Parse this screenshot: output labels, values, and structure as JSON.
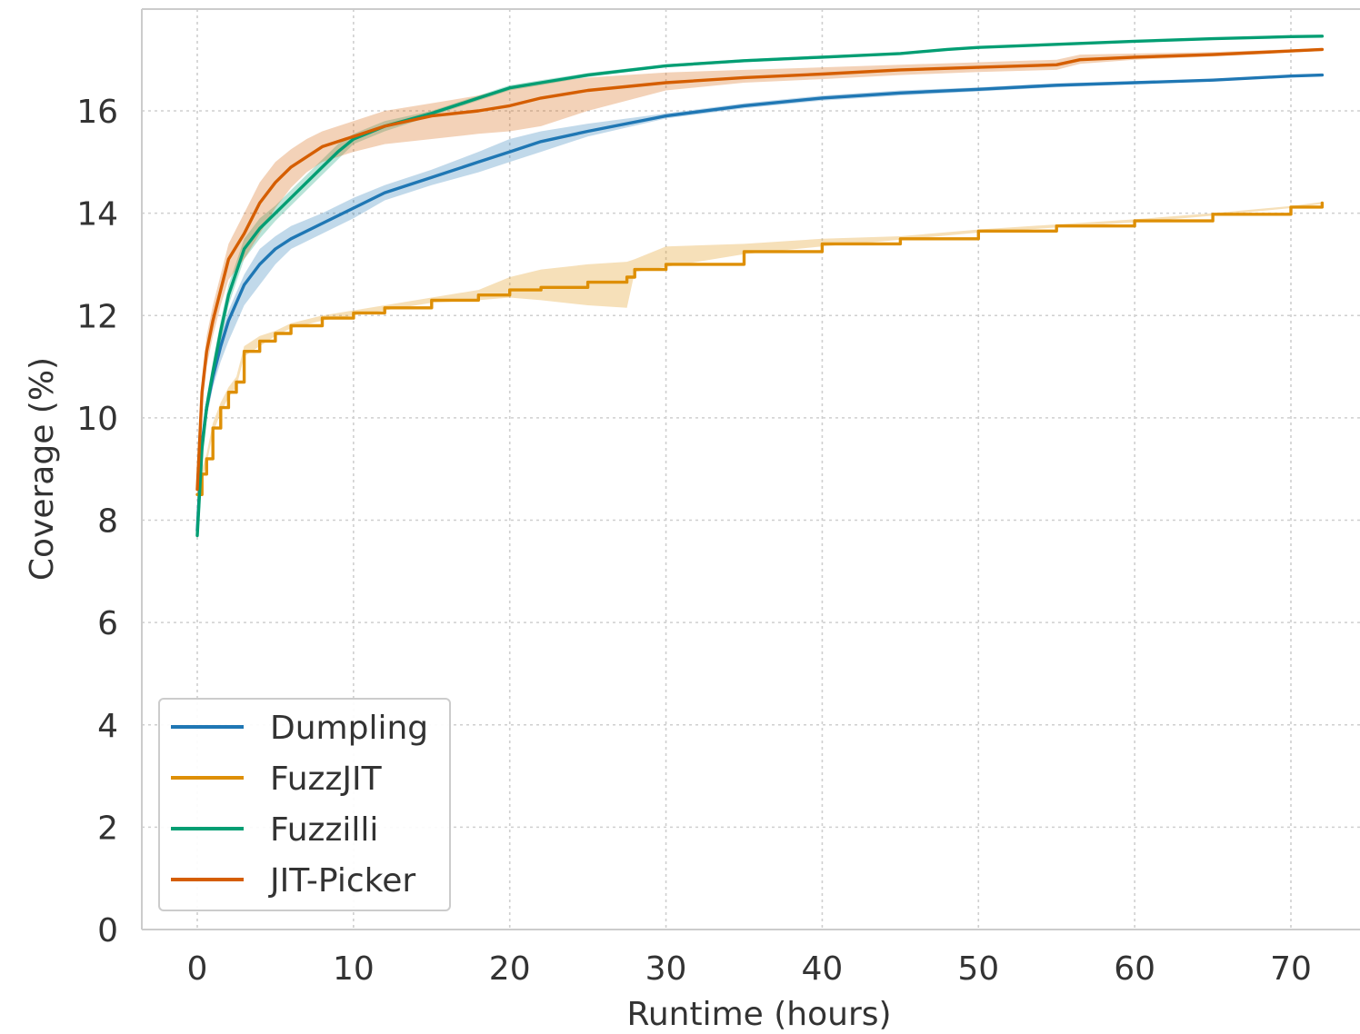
{
  "chart_data": {
    "type": "line",
    "xlabel": "Runtime (hours)",
    "ylabel": "Coverage (%)",
    "xlim": [
      -3.6,
      74.5
    ],
    "ylim": [
      0,
      18
    ],
    "xticks": [
      0,
      10,
      20,
      30,
      40,
      50,
      60,
      70
    ],
    "yticks": [
      0,
      2,
      4,
      6,
      8,
      10,
      12,
      14,
      16
    ],
    "grid": true,
    "legend": {
      "position": "lower-left"
    },
    "series": [
      {
        "name": "Dumpling",
        "color": "#1f77b4",
        "x": [
          0,
          0.3,
          0.6,
          1,
          1.5,
          2,
          3,
          4,
          5,
          6,
          8,
          10,
          12,
          15,
          18,
          20,
          22,
          25,
          30,
          35,
          40,
          45,
          50,
          55,
          60,
          65,
          70,
          72
        ],
        "y": [
          7.8,
          9.5,
          10.2,
          10.8,
          11.4,
          11.9,
          12.6,
          13.0,
          13.3,
          13.5,
          13.8,
          14.1,
          14.4,
          14.7,
          15.0,
          15.2,
          15.4,
          15.6,
          15.9,
          16.1,
          16.25,
          16.35,
          16.42,
          16.5,
          16.55,
          16.6,
          16.68,
          16.7
        ],
        "lower": [
          7.7,
          9.3,
          10.0,
          10.6,
          11.1,
          11.5,
          12.2,
          12.6,
          13.0,
          13.3,
          13.6,
          13.9,
          14.25,
          14.55,
          14.8,
          15.0,
          15.2,
          15.5,
          15.85,
          16.05,
          16.2,
          16.3,
          16.38,
          16.46,
          16.52,
          16.58,
          16.66,
          16.68
        ],
        "upper": [
          7.9,
          9.7,
          10.4,
          11.0,
          11.6,
          12.1,
          12.8,
          13.3,
          13.55,
          13.75,
          14.0,
          14.3,
          14.55,
          14.85,
          15.2,
          15.45,
          15.6,
          15.75,
          15.95,
          16.15,
          16.3,
          16.4,
          16.46,
          16.54,
          16.58,
          16.62,
          16.7,
          16.72
        ]
      },
      {
        "name": "FuzzJIT",
        "color": "#de8f05",
        "x": [
          0,
          0.3,
          0.6,
          1,
          1.5,
          2,
          2.5,
          3,
          4,
          5,
          6,
          8,
          10,
          12,
          15,
          18,
          20,
          22,
          25,
          27.5,
          28,
          30,
          35,
          40,
          45,
          50,
          55,
          60,
          65,
          70,
          72
        ],
        "y": [
          8.5,
          8.9,
          9.2,
          9.8,
          10.2,
          10.5,
          10.7,
          11.3,
          11.5,
          11.65,
          11.8,
          11.95,
          12.05,
          12.15,
          12.3,
          12.4,
          12.5,
          12.55,
          12.65,
          12.75,
          12.9,
          13.0,
          13.25,
          13.4,
          13.5,
          13.65,
          13.75,
          13.85,
          13.98,
          14.12,
          14.2
        ],
        "lower": [
          8.4,
          8.8,
          9.1,
          9.7,
          10.1,
          10.4,
          10.6,
          11.2,
          11.4,
          11.6,
          11.75,
          11.9,
          12.0,
          12.1,
          12.25,
          12.3,
          12.35,
          12.3,
          12.2,
          12.15,
          12.85,
          12.95,
          13.2,
          13.35,
          13.48,
          13.62,
          13.72,
          13.82,
          13.95,
          14.1,
          14.18
        ],
        "upper": [
          8.6,
          9.0,
          9.3,
          9.9,
          10.3,
          10.6,
          10.8,
          11.4,
          11.6,
          11.7,
          11.85,
          12.0,
          12.1,
          12.2,
          12.35,
          12.5,
          12.75,
          12.9,
          13.0,
          13.05,
          13.1,
          13.35,
          13.4,
          13.5,
          13.55,
          13.68,
          13.78,
          13.88,
          14.0,
          14.14,
          14.22
        ]
      },
      {
        "name": "Fuzzilli",
        "color": "#029e73",
        "x": [
          0,
          0.3,
          0.6,
          1,
          1.5,
          2,
          3,
          4,
          5,
          6,
          8,
          9,
          10,
          12,
          15,
          18,
          20,
          22,
          25,
          30,
          35,
          40,
          45,
          48,
          50,
          55,
          60,
          65,
          70,
          72
        ],
        "y": [
          7.7,
          9.4,
          10.2,
          10.9,
          11.7,
          12.4,
          13.3,
          13.7,
          14.0,
          14.3,
          14.9,
          15.2,
          15.45,
          15.7,
          15.95,
          16.25,
          16.45,
          16.55,
          16.7,
          16.88,
          16.98,
          17.05,
          17.12,
          17.2,
          17.24,
          17.3,
          17.36,
          17.41,
          17.45,
          17.46
        ],
        "lower": [
          7.6,
          9.2,
          10.0,
          10.7,
          11.5,
          12.2,
          13.1,
          13.5,
          13.85,
          14.15,
          14.75,
          15.05,
          15.35,
          15.6,
          15.9,
          16.2,
          16.4,
          16.5,
          16.66,
          16.85,
          16.95,
          17.02,
          17.1,
          17.18,
          17.22,
          17.28,
          17.34,
          17.39,
          17.43,
          17.44
        ],
        "upper": [
          7.8,
          9.6,
          10.4,
          11.1,
          11.9,
          12.6,
          13.5,
          13.9,
          14.15,
          14.45,
          15.05,
          15.35,
          15.55,
          15.8,
          16.0,
          16.3,
          16.5,
          16.6,
          16.74,
          16.91,
          17.01,
          17.08,
          17.14,
          17.22,
          17.26,
          17.32,
          17.38,
          17.43,
          17.47,
          17.48
        ]
      },
      {
        "name": "JIT-Picker",
        "color": "#d55e00",
        "x": [
          0,
          0.3,
          0.6,
          1,
          1.5,
          2,
          3,
          4,
          5,
          6,
          7,
          8,
          10,
          12,
          15,
          18,
          20,
          22,
          25,
          30,
          35,
          40,
          45,
          50,
          55,
          56.5,
          60,
          65,
          70,
          72
        ],
        "y": [
          8.6,
          10.5,
          11.3,
          11.9,
          12.5,
          13.1,
          13.6,
          14.2,
          14.6,
          14.9,
          15.1,
          15.3,
          15.5,
          15.7,
          15.9,
          16.0,
          16.1,
          16.25,
          16.4,
          16.55,
          16.65,
          16.72,
          16.8,
          16.85,
          16.9,
          17.0,
          17.05,
          17.1,
          17.17,
          17.2
        ],
        "lower": [
          8.5,
          10.2,
          11.0,
          11.6,
          12.2,
          12.7,
          13.1,
          13.6,
          14.1,
          14.5,
          14.8,
          15.0,
          15.2,
          15.35,
          15.45,
          15.55,
          15.6,
          15.7,
          16.0,
          16.4,
          16.55,
          16.62,
          16.7,
          16.76,
          16.8,
          16.92,
          17.0,
          17.06,
          17.14,
          17.17
        ],
        "upper": [
          8.7,
          10.8,
          11.6,
          12.2,
          12.8,
          13.4,
          14.0,
          14.6,
          15.0,
          15.25,
          15.45,
          15.6,
          15.8,
          16.0,
          16.15,
          16.3,
          16.45,
          16.55,
          16.65,
          16.75,
          16.8,
          16.85,
          16.9,
          16.95,
          17.0,
          17.1,
          17.12,
          17.15,
          17.2,
          17.23
        ]
      }
    ]
  }
}
